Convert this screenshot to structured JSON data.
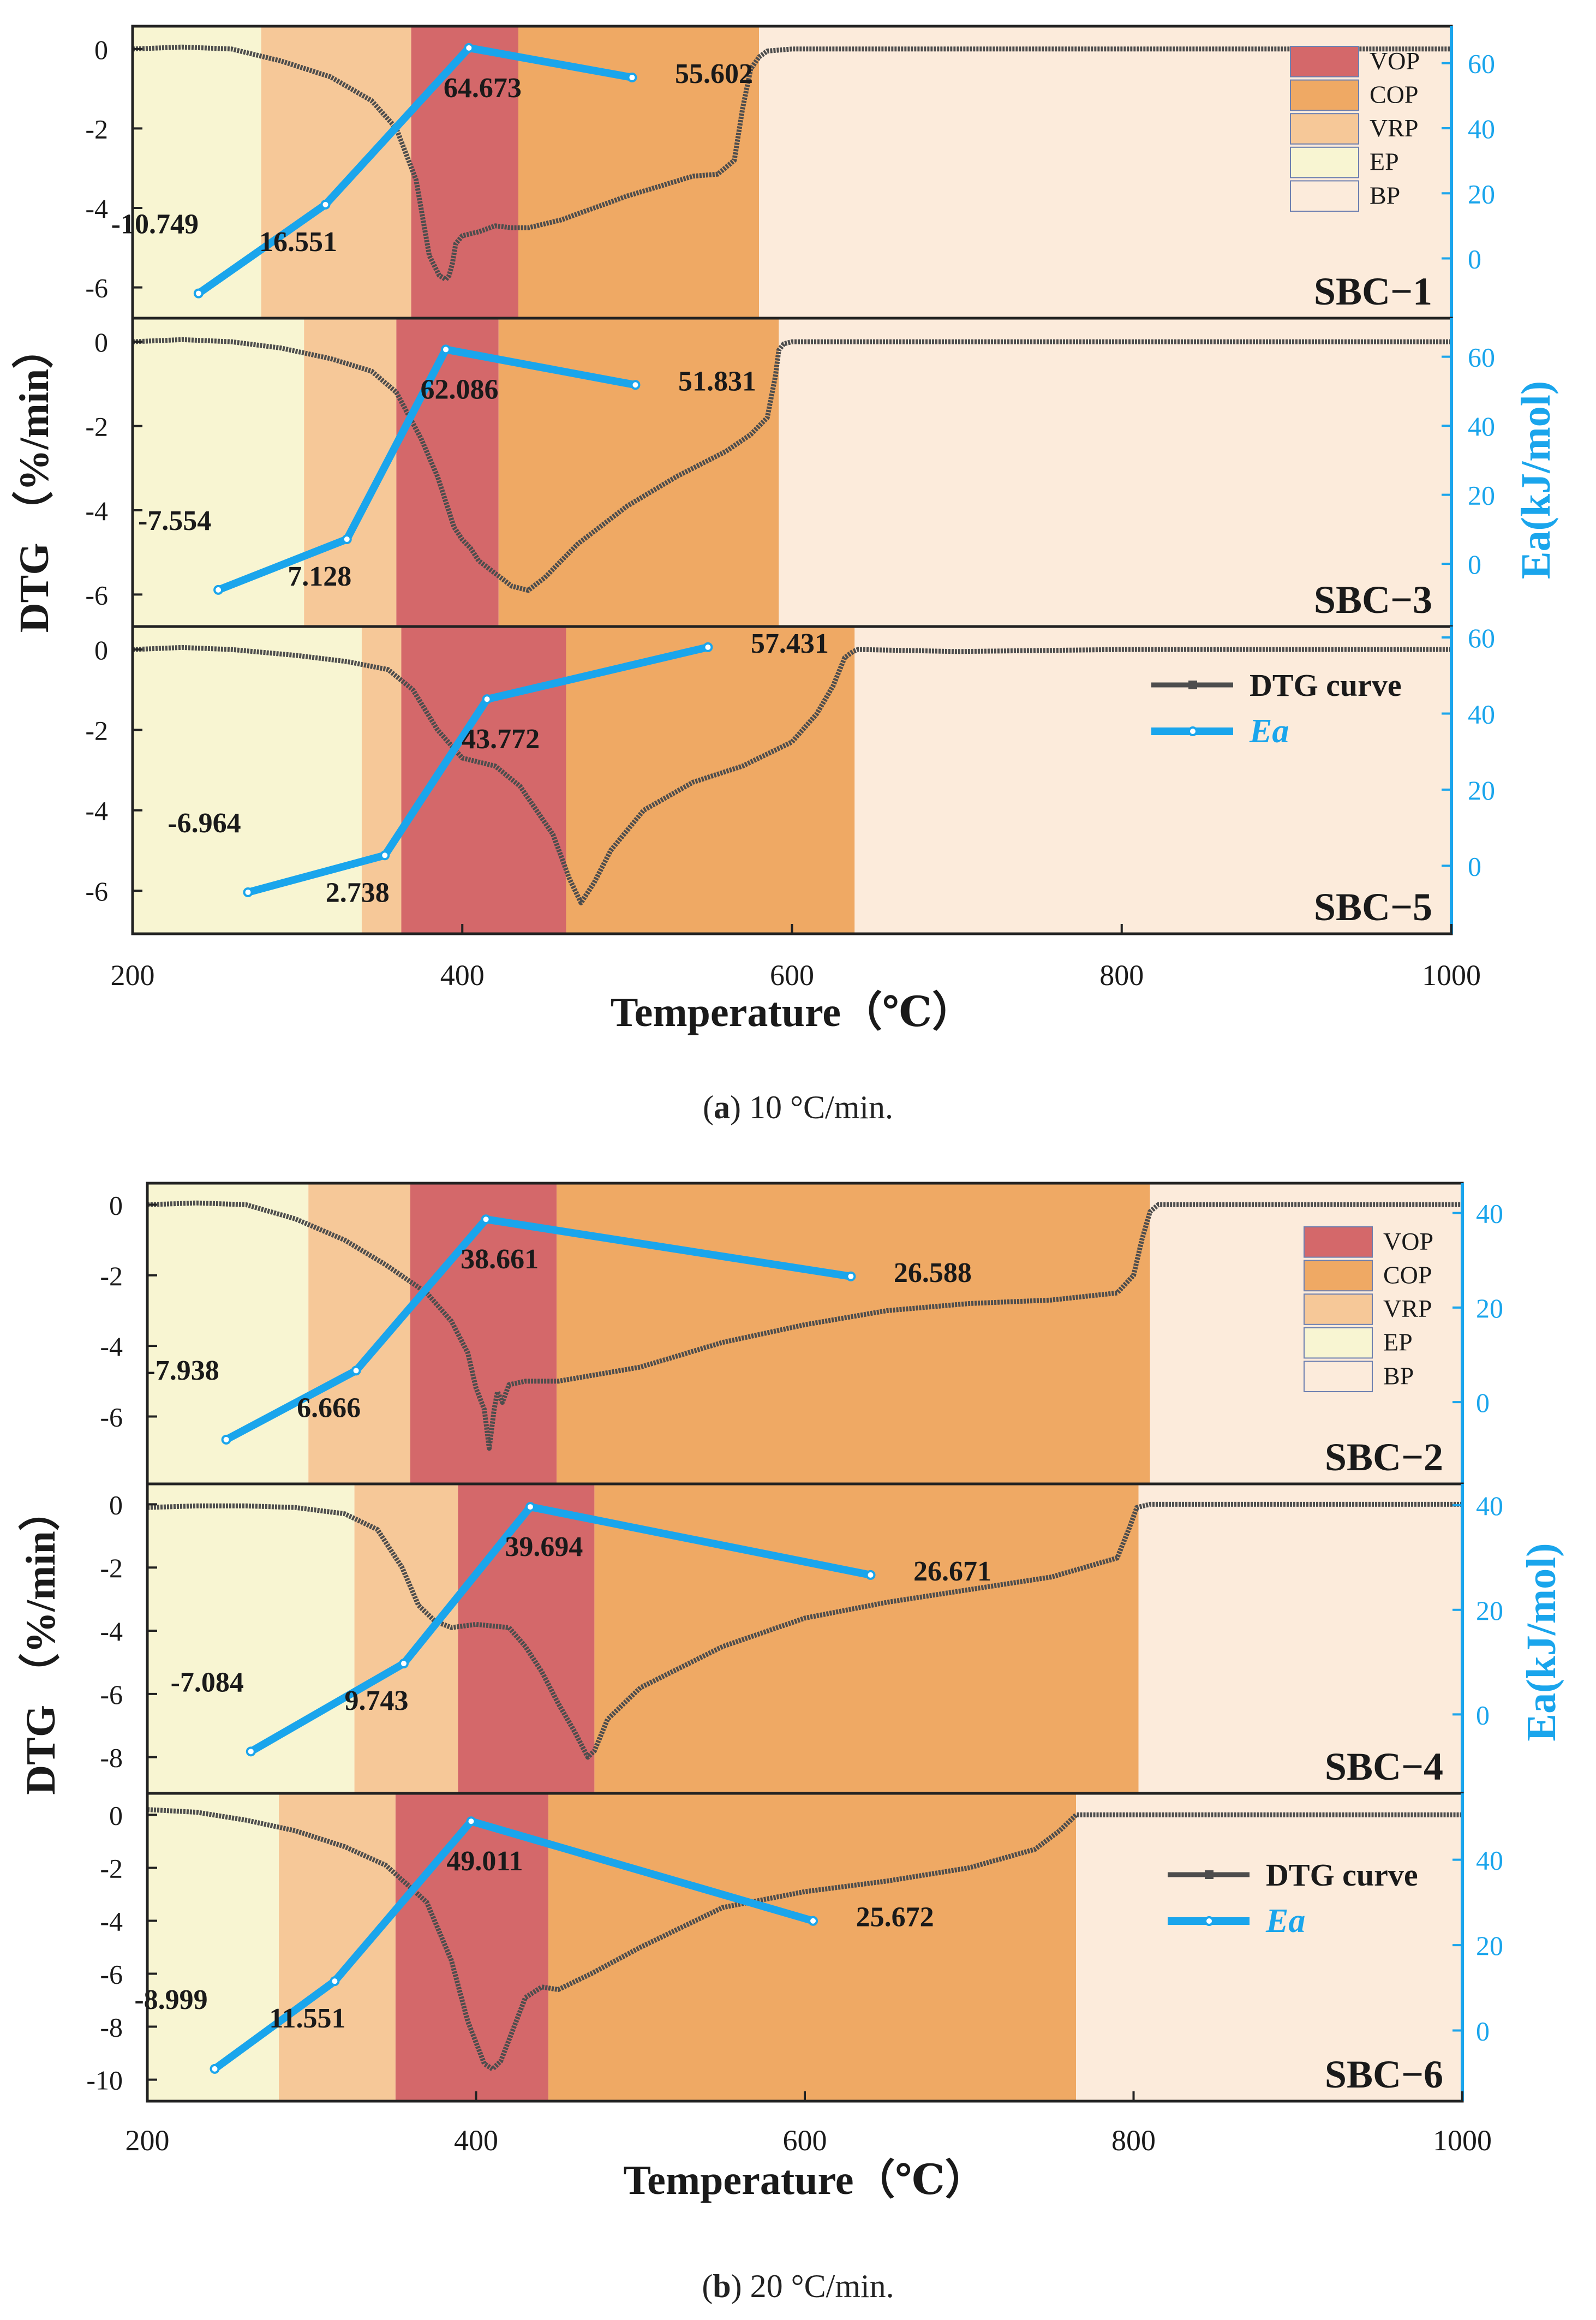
{
  "colors": {
    "VOP": "#d4686a",
    "COP": "#efa964",
    "VRP": "#f6c898",
    "EP": "#f8f5d2",
    "BP": "#fcebdb",
    "dtg": "#4d4d4d",
    "ea": "#1aa5ec",
    "label": "#1a1a1a"
  },
  "captions": [
    {
      "label": "a",
      "text": "10 °C/min."
    },
    {
      "label": "b",
      "text": "20 °C/min."
    }
  ],
  "chart_data": [
    {
      "type": "line",
      "title": "(a) 10 °C/min.",
      "xlabel": "Temperature（℃）",
      "ylabel": "DTG （%/min）",
      "y2label": "Ea(kJ/mol)",
      "xlim": [
        200,
        1000
      ],
      "xticks": [
        "200",
        "400",
        "600",
        "800",
        "1000"
      ],
      "legend_regions": [
        "VOP",
        "COP",
        "VRP",
        "EP",
        "BP"
      ],
      "legend_series": [
        "DTG curve",
        "Ea"
      ],
      "panels": [
        {
          "name": "SBC−1",
          "ylim": [
            -6.5,
            0.3
          ],
          "yticks": [
            0,
            -2,
            -4,
            -6
          ],
          "y2lim": [
            -15,
            68
          ],
          "y2ticks": [
            0,
            20,
            40,
            60
          ],
          "regions": [
            {
              "phase": "EP",
              "from": 200,
              "to": 278
            },
            {
              "phase": "VRP",
              "from": 278,
              "to": 369
            },
            {
              "phase": "VOP",
              "from": 369,
              "to": 434
            },
            {
              "phase": "COP",
              "from": 434,
              "to": 580
            },
            {
              "phase": "BP",
              "from": 580,
              "to": 1000
            }
          ],
          "dtg": {
            "x": [
              200,
              230,
              260,
              290,
              320,
              345,
              360,
              372,
              380,
              386,
              390,
              392,
              394,
              396,
              400,
              410,
              420,
              430,
              440,
              460,
              480,
              500,
              520,
              540,
              555,
              565,
              570,
              575,
              580,
              585,
              600,
              650,
              700,
              800,
              900,
              1000
            ],
            "y": [
              0,
              0.05,
              0,
              -0.3,
              -0.7,
              -1.3,
              -2.0,
              -3.3,
              -5.2,
              -5.7,
              -5.8,
              -5.7,
              -5.4,
              -4.9,
              -4.7,
              -4.6,
              -4.45,
              -4.5,
              -4.5,
              -4.3,
              -4.0,
              -3.7,
              -3.45,
              -3.2,
              -3.15,
              -2.8,
              -1.5,
              -0.5,
              -0.2,
              -0.05,
              0,
              0,
              0,
              0,
              0,
              0
            ]
          },
          "ea": {
            "x": [
              240,
              317,
              404,
              503
            ],
            "y": [
              -10.749,
              16.551,
              64.673,
              55.602
            ]
          },
          "ea_labels": [
            "-10.749",
            "16.551",
            "64.673",
            "55.602"
          ]
        },
        {
          "name": "SBC−3",
          "ylim": [
            -6.5,
            0.3
          ],
          "yticks": [
            0,
            -2,
            -4,
            -6
          ],
          "y2lim": [
            -15,
            68
          ],
          "y2ticks": [
            0,
            20,
            40,
            60
          ],
          "regions": [
            {
              "phase": "EP",
              "from": 200,
              "to": 304
            },
            {
              "phase": "VRP",
              "from": 304,
              "to": 360
            },
            {
              "phase": "VOP",
              "from": 360,
              "to": 422
            },
            {
              "phase": "COP",
              "from": 422,
              "to": 592
            },
            {
              "phase": "BP",
              "from": 592,
              "to": 1000
            }
          ],
          "dtg": {
            "x": [
              200,
              230,
              260,
              290,
              320,
              345,
              360,
              375,
              385,
              395,
              400,
              405,
              410,
              420,
              430,
              440,
              450,
              470,
              500,
              530,
              560,
              575,
              585,
              590,
              592,
              595,
              600,
              700,
              800,
              1000
            ],
            "y": [
              0,
              0.05,
              0,
              -0.15,
              -0.4,
              -0.7,
              -1.2,
              -2.3,
              -3.2,
              -4.4,
              -4.7,
              -4.9,
              -5.2,
              -5.5,
              -5.8,
              -5.9,
              -5.6,
              -4.8,
              -3.9,
              -3.2,
              -2.6,
              -2.2,
              -1.8,
              -0.8,
              -0.2,
              -0.05,
              0,
              0,
              0,
              0
            ]
          },
          "ea": {
            "x": [
              252,
              330,
              390,
              505
            ],
            "y": [
              -7.554,
              7.128,
              62.086,
              51.831
            ]
          },
          "ea_labels": [
            "-7.554",
            "7.128",
            "62.086",
            "51.831"
          ]
        },
        {
          "name": "SBC−5",
          "ylim": [
            -6.8,
            0.3
          ],
          "yticks": [
            0,
            -2,
            -4,
            -6
          ],
          "y2lim": [
            -15,
            60
          ],
          "y2ticks": [
            0,
            20,
            40,
            60
          ],
          "regions": [
            {
              "phase": "EP",
              "from": 200,
              "to": 339
            },
            {
              "phase": "VRP",
              "from": 339,
              "to": 363
            },
            {
              "phase": "VOP",
              "from": 363,
              "to": 463
            },
            {
              "phase": "COP",
              "from": 463,
              "to": 638
            },
            {
              "phase": "BP",
              "from": 638,
              "to": 1000
            }
          ],
          "dtg": {
            "x": [
              200,
              230,
              260,
              300,
              330,
              355,
              370,
              385,
              400,
              420,
              435,
              445,
              455,
              465,
              472,
              480,
              490,
              510,
              540,
              570,
              600,
              615,
              625,
              632,
              637,
              640,
              700,
              800,
              1000
            ],
            "y": [
              0,
              0.05,
              0,
              -0.15,
              -0.3,
              -0.5,
              -1.0,
              -2.0,
              -2.7,
              -2.9,
              -3.4,
              -4.0,
              -4.6,
              -5.7,
              -6.3,
              -5.8,
              -5.0,
              -4.0,
              -3.3,
              -2.9,
              -2.3,
              -1.6,
              -0.9,
              -0.2,
              -0.05,
              0,
              -0.05,
              0,
              0
            ]
          },
          "ea": {
            "x": [
              270,
              353,
              415,
              549
            ],
            "y": [
              -6.964,
              2.738,
              43.772,
              57.431
            ]
          },
          "ea_labels": [
            "-6.964",
            "2.738",
            "43.772",
            "57.431"
          ]
        }
      ]
    },
    {
      "type": "line",
      "title": "(b) 20 °C/min.",
      "xlabel": "Temperature（℃）",
      "ylabel": "DTG （%/min）",
      "y2label": "Ea(kJ/mol)",
      "xlim": [
        200,
        1000
      ],
      "xticks": [
        "200",
        "400",
        "600",
        "800",
        "1000"
      ],
      "legend_regions": [
        "VOP",
        "COP",
        "VRP",
        "EP",
        "BP"
      ],
      "legend_series": [
        "DTG curve",
        "Ea"
      ],
      "panels": [
        {
          "name": "SBC−2",
          "ylim": [
            -7.6,
            0.3
          ],
          "yticks": [
            0,
            -2,
            -4,
            -6
          ],
          "y2lim": [
            -15,
            44
          ],
          "y2ticks": [
            0,
            20,
            40
          ],
          "regions": [
            {
              "phase": "EP",
              "from": 200,
              "to": 298
            },
            {
              "phase": "VRP",
              "from": 298,
              "to": 360
            },
            {
              "phase": "VOP",
              "from": 360,
              "to": 449
            },
            {
              "phase": "COP",
              "from": 449,
              "to": 810
            },
            {
              "phase": "BP",
              "from": 810,
              "to": 1000
            }
          ],
          "dtg": {
            "x": [
              200,
              230,
              260,
              290,
              300,
              320,
              345,
              370,
              385,
              395,
              400,
              405,
              408,
              411,
              413,
              416,
              420,
              430,
              450,
              500,
              550,
              600,
              650,
              700,
              750,
              790,
              800,
              805,
              810,
              815,
              900,
              1000
            ],
            "y": [
              0,
              0.05,
              0,
              -0.4,
              -0.6,
              -1.0,
              -1.7,
              -2.5,
              -3.3,
              -4.2,
              -5.2,
              -5.8,
              -6.9,
              -5.8,
              -5.3,
              -5.6,
              -5.1,
              -5.0,
              -5.0,
              -4.6,
              -3.9,
              -3.4,
              -3.0,
              -2.8,
              -2.7,
              -2.5,
              -2.0,
              -1.0,
              -0.2,
              0,
              0,
              0
            ]
          },
          "ea": {
            "x": [
              248,
              327,
              406,
              628
            ],
            "y": [
              -7.938,
              6.666,
              38.661,
              26.588
            ]
          },
          "ea_labels": [
            "-7.938",
            "6.666",
            "38.661",
            "26.588"
          ]
        },
        {
          "name": "SBC−4",
          "ylim": [
            -8.8,
            0.3
          ],
          "yticks": [
            0,
            -2,
            -4,
            -6,
            -8
          ],
          "y2lim": [
            -13,
            42
          ],
          "y2ticks": [
            0,
            20,
            40
          ],
          "regions": [
            {
              "phase": "EP",
              "from": 200,
              "to": 326
            },
            {
              "phase": "VRP",
              "from": 326,
              "to": 389
            },
            {
              "phase": "VOP",
              "from": 389,
              "to": 472
            },
            {
              "phase": "COP",
              "from": 472,
              "to": 803
            },
            {
              "phase": "BP",
              "from": 803,
              "to": 1000
            }
          ],
          "dtg": {
            "x": [
              200,
              230,
              260,
              290,
              320,
              340,
              355,
              365,
              375,
              385,
              400,
              420,
              430,
              440,
              450,
              460,
              468,
              472,
              480,
              500,
              550,
              600,
              650,
              700,
              750,
              790,
              797,
              802,
              810,
              900,
              1000
            ],
            "y": [
              -0.1,
              -0.05,
              -0.05,
              -0.1,
              -0.3,
              -0.8,
              -2.0,
              -3.2,
              -3.7,
              -3.9,
              -3.8,
              -3.9,
              -4.5,
              -5.3,
              -6.3,
              -7.2,
              -8.0,
              -7.8,
              -6.8,
              -5.8,
              -4.5,
              -3.6,
              -3.1,
              -2.7,
              -2.3,
              -1.7,
              -0.8,
              -0.1,
              0,
              0,
              0
            ]
          },
          "ea": {
            "x": [
              263,
              356,
              433,
              640
            ],
            "y": [
              -7.084,
              9.743,
              39.694,
              26.671
            ]
          },
          "ea_labels": [
            "-7.084",
            "9.743",
            "39.694",
            "26.671"
          ]
        },
        {
          "name": "SBC−6",
          "ylim": [
            -10.4,
            0.4
          ],
          "yticks": [
            0,
            -2,
            -4,
            -6,
            -8,
            -10
          ],
          "y2lim": [
            -14,
            53
          ],
          "y2ticks": [
            0,
            20,
            40
          ],
          "regions": [
            {
              "phase": "EP",
              "from": 200,
              "to": 280
            },
            {
              "phase": "VRP",
              "from": 280,
              "to": 351
            },
            {
              "phase": "VOP",
              "from": 351,
              "to": 444
            },
            {
              "phase": "COP",
              "from": 444,
              "to": 765
            },
            {
              "phase": "BP",
              "from": 765,
              "to": 1000
            }
          ],
          "dtg": {
            "x": [
              200,
              230,
              260,
              290,
              320,
              345,
              370,
              385,
              395,
              405,
              410,
              415,
              420,
              430,
              440,
              450,
              470,
              500,
              550,
              600,
              650,
              700,
              740,
              755,
              765,
              770,
              900,
              1000
            ],
            "y": [
              0.2,
              0.1,
              -0.2,
              -0.6,
              -1.2,
              -1.9,
              -3.3,
              -5.5,
              -7.8,
              -9.4,
              -9.6,
              -9.3,
              -8.5,
              -6.9,
              -6.5,
              -6.6,
              -6.0,
              -5.0,
              -3.5,
              -2.9,
              -2.5,
              -2.0,
              -1.3,
              -0.6,
              0,
              0,
              0,
              0
            ]
          },
          "ea": {
            "x": [
              241,
              314,
              397,
              605
            ],
            "y": [
              -8.999,
              11.551,
              49.011,
              25.672
            ]
          },
          "ea_labels": [
            "-8.999",
            "11.551",
            "49.011",
            "25.672"
          ]
        }
      ]
    }
  ]
}
